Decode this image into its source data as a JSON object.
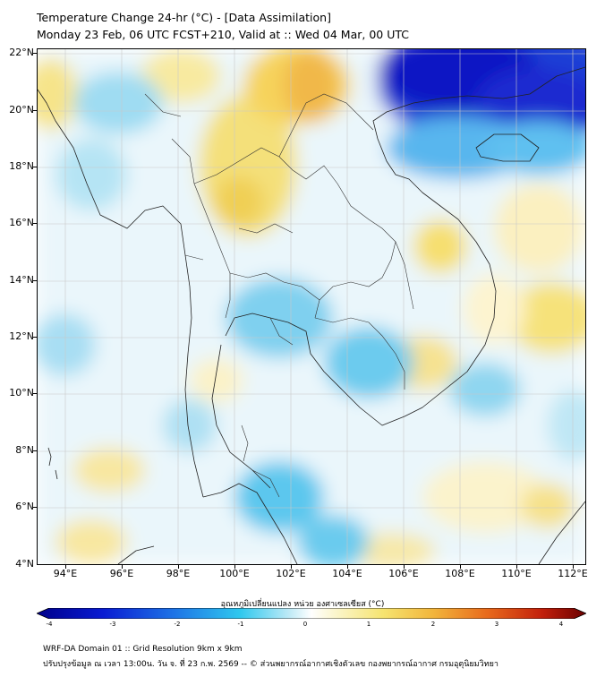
{
  "title_line1": "Temperature Change 24-hr (°C) - [Data Assimilation]",
  "title_line2": "Monday 23 Feb, 06 UTC FCST+210, Valid at :: Wed 04 Mar, 00 UTC",
  "lat_labels": [
    "22°N",
    "20°N",
    "18°N",
    "16°N",
    "14°N",
    "12°N",
    "10°N",
    "8°N",
    "6°N",
    "4°N"
  ],
  "lon_labels": [
    "94°E",
    "96°E",
    "98°E",
    "100°E",
    "102°E",
    "104°E",
    "106°E",
    "108°E",
    "110°E",
    "112°E"
  ],
  "colorbar": {
    "label": "อุณหภูมิเปลี่ยนแปลง หน่วย องศาเซลเซียส (°C)",
    "ticks": [
      "-4",
      "-3",
      "-2",
      "-1",
      "0",
      "1",
      "2",
      "3",
      "4"
    ],
    "min": -4,
    "max": 4
  },
  "footer_line1": "WRF-DA Domain 01 :: Grid Resolution 9km x 9km",
  "footer_line2": "ปรับปรุงข้อมูล ณ เวลา 13:00น. วัน จ. ที่ 23 ก.พ. 2569 -- © ส่วนพยากรณ์อากาศเชิงตัวเลข กองพยากรณ์อากาศ กรมอุตุนิยมวิทยา"
}
